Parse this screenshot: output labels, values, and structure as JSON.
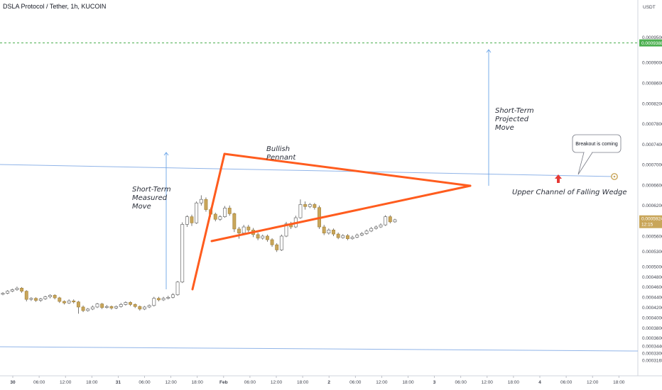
{
  "header": {
    "title": "DSLA Protocol / Tether, 1h, KUCOIN"
  },
  "colors": {
    "up": "#ffffff",
    "down": "#c9a65a",
    "wick": "#555555",
    "pattern": "#ff5c1e",
    "channel": "#90b4e8",
    "target": "#4caf50",
    "arrow": "#e53935",
    "current": "#c9a65a"
  },
  "chart_data": {
    "type": "candlestick",
    "ylabel": "USDT",
    "ylim": [
      0.00031,
      0.0010734
    ],
    "y_ticks": [
      "0.0010000",
      "0.0009500",
      "0.0009000",
      "0.0008600",
      "0.0008200",
      "0.0007800",
      "0.0007400",
      "0.0007000",
      "0.0006600",
      "0.0006200",
      "0.0005600",
      "0.0005300",
      "0.0005000",
      "0.0004800",
      "0.0004600",
      "0.0004400",
      "0.0004200",
      "0.0004000",
      "0.0003800",
      "0.0003600",
      "0.0003440",
      "0.0003300",
      "0.0003165"
    ],
    "x_ticks": [
      "30",
      "06:00",
      "12:00",
      "18:00",
      "31",
      "06:00",
      "12:00",
      "18:00",
      "Feb",
      "06:00",
      "12:00",
      "18:00",
      "2",
      "06:00",
      "12:00",
      "18:00",
      "3",
      "06:00",
      "12:00",
      "18:00",
      "4",
      "06:00",
      "12:00",
      "18:00"
    ],
    "target_price": "0.0009388",
    "current_price": "0.0005924",
    "current_countdown": "12:15",
    "candles": [
      [
        0.000446,
        0.000448,
        0.000444,
        0.00045
      ],
      [
        0.000448,
        0.000452,
        0.000446,
        0.000454
      ],
      [
        0.000452,
        0.000455,
        0.00045,
        0.000457
      ],
      [
        0.000455,
        0.000458,
        0.000453,
        0.000461
      ],
      [
        0.000458,
        0.000452,
        0.000449,
        0.00046
      ],
      [
        0.000452,
        0.000436,
        0.000432,
        0.000454
      ],
      [
        0.000436,
        0.000438,
        0.000433,
        0.00044
      ],
      [
        0.000438,
        0.000434,
        0.000431,
        0.00044
      ],
      [
        0.000434,
        0.000437,
        0.000431,
        0.000439
      ],
      [
        0.000437,
        0.000441,
        0.000435,
        0.000443
      ],
      [
        0.000441,
        0.000444,
        0.000438,
        0.000446
      ],
      [
        0.000444,
        0.000439,
        0.000436,
        0.000446
      ],
      [
        0.000439,
        0.000432,
        0.000429,
        0.000441
      ],
      [
        0.000432,
        0.000429,
        0.000426,
        0.000434
      ],
      [
        0.000429,
        0.000433,
        0.000427,
        0.000436
      ],
      [
        0.000433,
        0.000431,
        0.000428,
        0.000436
      ],
      [
        0.000431,
        0.000421,
        0.000408,
        0.000433
      ],
      [
        0.000421,
        0.000414,
        0.000411,
        0.000424
      ],
      [
        0.000414,
        0.000417,
        0.000412,
        0.000419
      ],
      [
        0.000417,
        0.000421,
        0.000415,
        0.000424
      ],
      [
        0.000421,
        0.000427,
        0.000419,
        0.000429
      ],
      [
        0.000427,
        0.00042,
        0.000417,
        0.000429
      ],
      [
        0.00042,
        0.000422,
        0.000418,
        0.000425
      ],
      [
        0.000422,
        0.000419,
        0.000416,
        0.000424
      ],
      [
        0.000419,
        0.000422,
        0.000417,
        0.000424
      ],
      [
        0.000422,
        0.000426,
        0.00042,
        0.000429
      ],
      [
        0.000426,
        0.00043,
        0.000424,
        0.000432
      ],
      [
        0.00043,
        0.000426,
        0.000423,
        0.000432
      ],
      [
        0.000426,
        0.000422,
        0.000419,
        0.000428
      ],
      [
        0.000422,
        0.000417,
        0.000414,
        0.000424
      ],
      [
        0.000417,
        0.000421,
        0.000415,
        0.000423
      ],
      [
        0.000421,
        0.000424,
        0.000419,
        0.000426
      ],
      [
        0.000424,
        0.000438,
        0.000422,
        0.000441
      ],
      [
        0.000438,
        0.000435,
        0.000432,
        0.000441
      ],
      [
        0.000435,
        0.000438,
        0.000433,
        0.000441
      ],
      [
        0.000438,
        0.00044,
        0.000436,
        0.000443
      ],
      [
        0.00044,
        0.000445,
        0.000438,
        0.000448
      ],
      [
        0.000445,
        0.00047,
        0.000443,
        0.000472
      ],
      [
        0.00047,
        0.000583,
        0.000468,
        0.000587
      ],
      [
        0.000583,
        0.000598,
        0.000578,
        0.000601
      ],
      [
        0.000598,
        0.000586,
        0.00058,
        0.000602
      ],
      [
        0.000586,
        0.000625,
        0.000584,
        0.000628
      ],
      [
        0.000625,
        0.000632,
        0.00062,
        0.00064
      ],
      [
        0.000632,
        0.000612,
        0.000608,
        0.000636
      ],
      [
        0.000612,
        0.000603,
        0.000598,
        0.000616
      ],
      [
        0.000603,
        0.000593,
        0.000589,
        0.000606
      ],
      [
        0.000593,
        0.000598,
        0.00059,
        0.000601
      ],
      [
        0.000598,
        0.000615,
        0.000596,
        0.000619
      ],
      [
        0.000615,
        0.000604,
        0.0006,
        0.00062
      ],
      [
        0.000604,
        0.000574,
        0.000568,
        0.000606
      ],
      [
        0.000574,
        0.000566,
        0.000555,
        0.000578
      ],
      [
        0.000566,
        0.000578,
        0.000562,
        0.000582
      ],
      [
        0.000578,
        0.000572,
        0.000568,
        0.000582
      ],
      [
        0.000572,
        0.000563,
        0.000558,
        0.000576
      ],
      [
        0.000563,
        0.000556,
        0.000552,
        0.000567
      ],
      [
        0.000556,
        0.00056,
        0.000553,
        0.000563
      ],
      [
        0.00056,
        0.000553,
        0.000549,
        0.000563
      ],
      [
        0.000553,
        0.000543,
        0.000539,
        0.000556
      ],
      [
        0.000543,
        0.000533,
        0.000529,
        0.000546
      ],
      [
        0.000533,
        0.00056,
        0.000531,
        0.000563
      ],
      [
        0.00056,
        0.000584,
        0.000558,
        0.000588
      ],
      [
        0.000584,
        0.000578,
        0.000574,
        0.000588
      ],
      [
        0.000578,
        0.000596,
        0.000576,
        0.0006
      ],
      [
        0.000596,
        0.000622,
        0.000594,
        0.000632
      ],
      [
        0.000622,
        0.000618,
        0.000612,
        0.000628
      ],
      [
        0.000618,
        0.000622,
        0.000615,
        0.000625
      ],
      [
        0.000622,
        0.000616,
        0.000612,
        0.000625
      ],
      [
        0.000616,
        0.000578,
        0.000574,
        0.00062
      ],
      [
        0.000578,
        0.000566,
        0.000562,
        0.000582
      ],
      [
        0.000566,
        0.000572,
        0.000563,
        0.000575
      ],
      [
        0.000572,
        0.000564,
        0.00056,
        0.000575
      ],
      [
        0.000564,
        0.000557,
        0.000554,
        0.000567
      ],
      [
        0.000557,
        0.000561,
        0.000555,
        0.000564
      ],
      [
        0.000561,
        0.000555,
        0.000552,
        0.000564
      ],
      [
        0.000555,
        0.000558,
        0.000553,
        0.000561
      ],
      [
        0.000558,
        0.000562,
        0.000556,
        0.000565
      ],
      [
        0.000562,
        0.000565,
        0.00056,
        0.000568
      ],
      [
        0.000565,
        0.00057,
        0.000563,
        0.000573
      ],
      [
        0.00057,
        0.000575,
        0.000568,
        0.000578
      ],
      [
        0.000575,
        0.000578,
        0.000573,
        0.000581
      ],
      [
        0.000578,
        0.000582,
        0.000576,
        0.000585
      ],
      [
        0.000582,
        0.000598,
        0.00058,
        0.000601
      ],
      [
        0.000598,
        0.000588,
        0.000585,
        0.000601
      ],
      [
        0.000588,
        0.000592,
        0.000586,
        0.000594
      ]
    ],
    "annotations": {
      "measured_move": [
        "Short-Term",
        "Measured",
        "Move"
      ],
      "projected_move": [
        "Short-Term",
        "Projected",
        "Move"
      ],
      "pennant": [
        "Bullish",
        "Pennant"
      ],
      "channel_label": "Upper Channel of Falling Wedge",
      "callout": "Breakout is coming"
    }
  }
}
